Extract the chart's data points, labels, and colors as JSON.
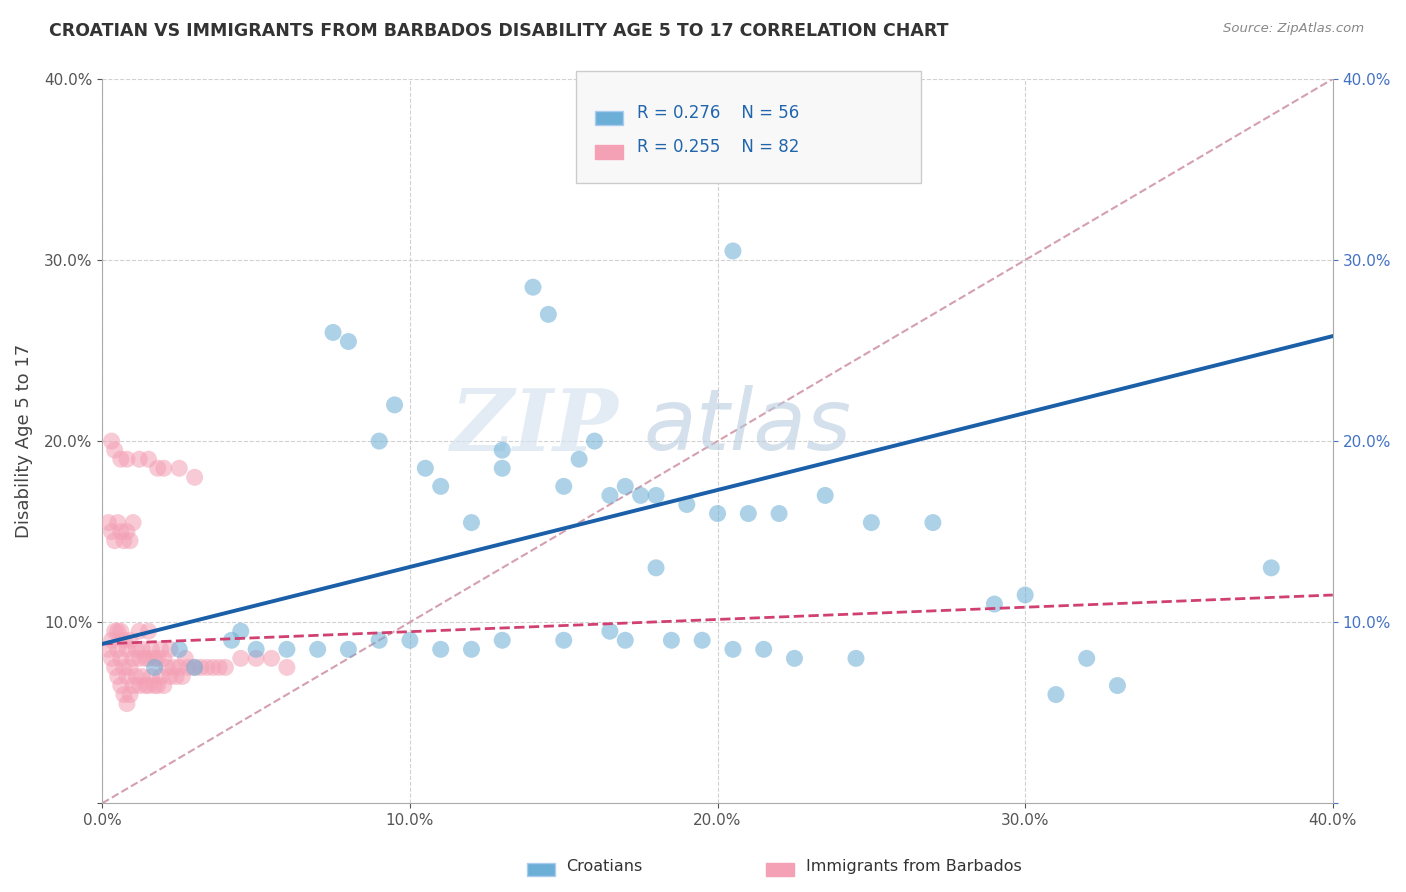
{
  "title": "CROATIAN VS IMMIGRANTS FROM BARBADOS DISABILITY AGE 5 TO 17 CORRELATION CHART",
  "source_text": "Source: ZipAtlas.com",
  "ylabel": "Disability Age 5 to 17",
  "xlim": [
    0.0,
    0.4
  ],
  "ylim": [
    0.0,
    0.4
  ],
  "xticks": [
    0.0,
    0.1,
    0.2,
    0.3,
    0.4
  ],
  "yticks": [
    0.0,
    0.1,
    0.2,
    0.3,
    0.4
  ],
  "blue_color": "#6baed6",
  "pink_color": "#f4a0b5",
  "blue_line_color": "#1a5fa8",
  "pink_line_color": "#d04070",
  "diagonal_color": "#d4a0b0",
  "watermark_zip": "ZIP",
  "watermark_atlas": "atlas",
  "legend_R_blue": "R = 0.276",
  "legend_N_blue": "N = 56",
  "legend_R_pink": "R = 0.255",
  "legend_N_pink": "N = 82",
  "legend_label_blue": "Croatians",
  "legend_label_pink": "Immigrants from Barbados",
  "blue_line_x0": 0.0,
  "blue_line_y0": 0.088,
  "blue_line_x1": 0.4,
  "blue_line_y1": 0.258,
  "pink_line_x0": 0.0,
  "pink_line_y0": 0.088,
  "pink_line_x1": 0.4,
  "pink_line_y1": 0.115,
  "blue_scatter_x": [
    0.025,
    0.045,
    0.042,
    0.08,
    0.075,
    0.09,
    0.095,
    0.105,
    0.11,
    0.12,
    0.13,
    0.13,
    0.14,
    0.145,
    0.155,
    0.16,
    0.165,
    0.17,
    0.175,
    0.18,
    0.19,
    0.2,
    0.21,
    0.22,
    0.235,
    0.25,
    0.27,
    0.29,
    0.3,
    0.31,
    0.32,
    0.33,
    0.38,
    0.017,
    0.03,
    0.05,
    0.06,
    0.07,
    0.08,
    0.09,
    0.1,
    0.11,
    0.12,
    0.13,
    0.15,
    0.17,
    0.185,
    0.195,
    0.205,
    0.215,
    0.225,
    0.245,
    0.205,
    0.15,
    0.165,
    0.18
  ],
  "blue_scatter_y": [
    0.085,
    0.095,
    0.09,
    0.255,
    0.26,
    0.2,
    0.22,
    0.185,
    0.175,
    0.155,
    0.185,
    0.195,
    0.285,
    0.27,
    0.19,
    0.2,
    0.17,
    0.175,
    0.17,
    0.17,
    0.165,
    0.16,
    0.16,
    0.16,
    0.17,
    0.155,
    0.155,
    0.11,
    0.115,
    0.06,
    0.08,
    0.065,
    0.13,
    0.075,
    0.075,
    0.085,
    0.085,
    0.085,
    0.085,
    0.09,
    0.09,
    0.085,
    0.085,
    0.09,
    0.09,
    0.09,
    0.09,
    0.09,
    0.085,
    0.085,
    0.08,
    0.08,
    0.305,
    0.175,
    0.095,
    0.13
  ],
  "pink_scatter_x": [
    0.002,
    0.003,
    0.003,
    0.004,
    0.004,
    0.005,
    0.005,
    0.005,
    0.006,
    0.006,
    0.006,
    0.007,
    0.007,
    0.007,
    0.008,
    0.008,
    0.008,
    0.009,
    0.009,
    0.009,
    0.01,
    0.01,
    0.011,
    0.011,
    0.012,
    0.012,
    0.012,
    0.013,
    0.013,
    0.014,
    0.014,
    0.015,
    0.015,
    0.015,
    0.016,
    0.016,
    0.017,
    0.017,
    0.018,
    0.018,
    0.019,
    0.019,
    0.02,
    0.02,
    0.021,
    0.022,
    0.022,
    0.023,
    0.024,
    0.025,
    0.026,
    0.027,
    0.028,
    0.03,
    0.032,
    0.034,
    0.036,
    0.038,
    0.04,
    0.045,
    0.05,
    0.055,
    0.06,
    0.002,
    0.003,
    0.004,
    0.005,
    0.006,
    0.007,
    0.008,
    0.009,
    0.01,
    0.012,
    0.015,
    0.018,
    0.02,
    0.025,
    0.03,
    0.003,
    0.004,
    0.006,
    0.008
  ],
  "pink_scatter_y": [
    0.085,
    0.08,
    0.09,
    0.075,
    0.095,
    0.07,
    0.085,
    0.095,
    0.065,
    0.08,
    0.095,
    0.06,
    0.075,
    0.09,
    0.055,
    0.07,
    0.085,
    0.06,
    0.075,
    0.09,
    0.065,
    0.08,
    0.07,
    0.085,
    0.065,
    0.08,
    0.095,
    0.07,
    0.085,
    0.065,
    0.08,
    0.065,
    0.08,
    0.095,
    0.07,
    0.085,
    0.065,
    0.08,
    0.065,
    0.08,
    0.07,
    0.085,
    0.065,
    0.08,
    0.075,
    0.07,
    0.085,
    0.075,
    0.07,
    0.075,
    0.07,
    0.08,
    0.075,
    0.075,
    0.075,
    0.075,
    0.075,
    0.075,
    0.075,
    0.08,
    0.08,
    0.08,
    0.075,
    0.155,
    0.15,
    0.145,
    0.155,
    0.15,
    0.145,
    0.15,
    0.145,
    0.155,
    0.19,
    0.19,
    0.185,
    0.185,
    0.185,
    0.18,
    0.2,
    0.195,
    0.19,
    0.19
  ]
}
